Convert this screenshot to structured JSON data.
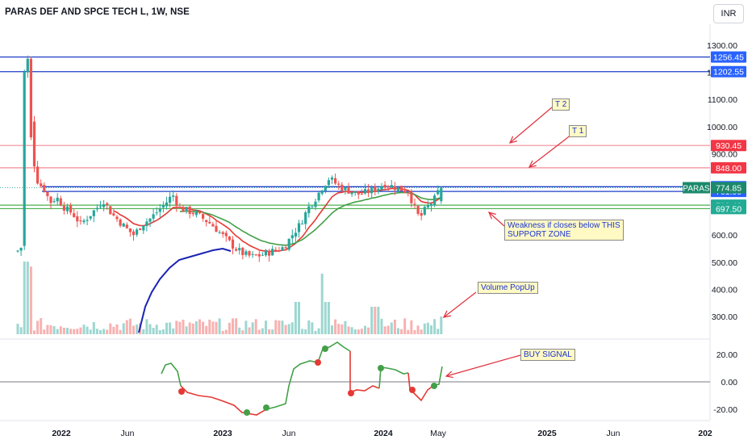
{
  "header": {
    "title": "PARAS DEF AND SPCE TECH L, 1W, NSE",
    "currency": "INR"
  },
  "colors": {
    "up": "#26a69a",
    "down": "#ef5350",
    "ema_fast": "#e53935",
    "ema_slow": "#43a047",
    "blue_line": "#1a23b5",
    "resistance": "#f28b95",
    "target": "#2962ff",
    "support": "#4caf50",
    "annotation_text": "#1a35d6",
    "annotation_bg": "#fff9c4",
    "arrow": "#e0303c"
  },
  "annotations": {
    "t2": "T 2",
    "t1": "T 1",
    "support": "Weakness if closes below THIS\nSUPPORT ZONE",
    "volume": "Volume PopUp",
    "buy": "BUY SIGNAL"
  },
  "chart_data": [
    {
      "type": "candlestick",
      "title": "PARAS DEF AND SPCE TECH L, 1W, NSE",
      "y_axis_ticks": [
        1300,
        1200,
        1100,
        1000,
        900,
        600,
        500,
        400,
        300
      ],
      "x_axis_ticks": [
        "2022",
        "Jun",
        "2023",
        "Jun",
        "2024",
        "May",
        "2025",
        "Jun",
        "202"
      ],
      "horizontal_levels": [
        {
          "value": 1256.45,
          "label": "1256.45",
          "color": "#2962ff"
        },
        {
          "value": 1202.55,
          "label": "1202.55",
          "color": "#2962ff"
        },
        {
          "value": 930.45,
          "label": "930.45",
          "color": "#f23645"
        },
        {
          "value": 848.0,
          "label": "848.00",
          "color": "#f23645"
        },
        {
          "value": 778.3,
          "label": "778.30",
          "color": "#2962ff"
        },
        {
          "value": 761.0,
          "label": "761.00",
          "color": "#2962ff"
        },
        {
          "value": 710.4,
          "label": "710.40",
          "color": "#22ab94"
        },
        {
          "value": 697.5,
          "label": "697.50",
          "color": "#22ab94"
        }
      ],
      "last_price": {
        "symbol": "PARAS",
        "value": 774.85
      },
      "approx_price_path": [
        {
          "date": "2021-10",
          "close": 540
        },
        {
          "date": "2021-10",
          "close": 1200
        },
        {
          "date": "2021-11",
          "close": 960
        },
        {
          "date": "2021-12",
          "close": 780
        },
        {
          "date": "2022-02",
          "close": 700
        },
        {
          "date": "2022-05",
          "close": 640
        },
        {
          "date": "2022-06",
          "close": 610
        },
        {
          "date": "2022-08",
          "close": 740
        },
        {
          "date": "2022-09",
          "close": 690
        },
        {
          "date": "2022-11",
          "close": 640
        },
        {
          "date": "2023-01",
          "close": 570
        },
        {
          "date": "2023-02",
          "close": 525
        },
        {
          "date": "2023-04",
          "close": 520
        },
        {
          "date": "2023-06",
          "close": 640
        },
        {
          "date": "2023-07",
          "close": 780
        },
        {
          "date": "2023-09",
          "close": 760
        },
        {
          "date": "2023-11",
          "close": 740
        },
        {
          "date": "2024-01",
          "close": 770
        },
        {
          "date": "2024-02",
          "close": 740
        },
        {
          "date": "2024-03",
          "close": 690
        },
        {
          "date": "2024-04",
          "close": 730
        },
        {
          "date": "2024-05",
          "close": 774.85
        }
      ]
    },
    {
      "type": "line",
      "y_axis_ticks": [
        20.0,
        0.0,
        -20.0
      ],
      "baseline": 0.0
    }
  ]
}
